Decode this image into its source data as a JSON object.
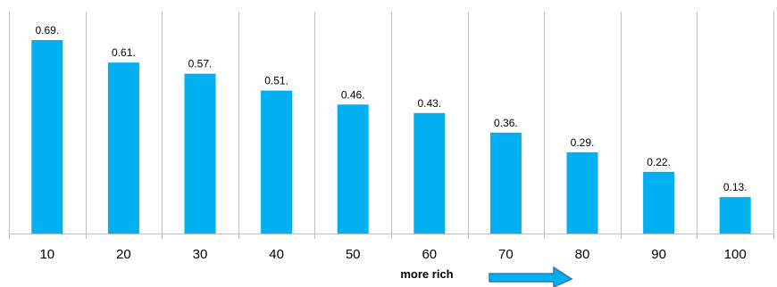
{
  "chart_data": {
    "type": "bar",
    "categories": [
      "10",
      "20",
      "30",
      "40",
      "50",
      "60",
      "70",
      "80",
      "90",
      "100"
    ],
    "values": [
      0.69,
      0.61,
      0.57,
      0.51,
      0.46,
      0.43,
      0.36,
      0.29,
      0.22,
      0.13
    ],
    "data_labels": [
      "0.69.",
      "0.61.",
      "0.57.",
      "0.51.",
      "0.46.",
      "0.43.",
      "0.36.",
      "0.29.",
      "0.22.",
      "0.13."
    ],
    "title": "",
    "xlabel": "more rich",
    "ylabel": "",
    "ylim": [
      0,
      0.76
    ],
    "grid": "vertical",
    "legend": "none",
    "bar_color": "#00b0f0",
    "arrow_color": "#00b0f0",
    "arrow_direction": "right"
  }
}
